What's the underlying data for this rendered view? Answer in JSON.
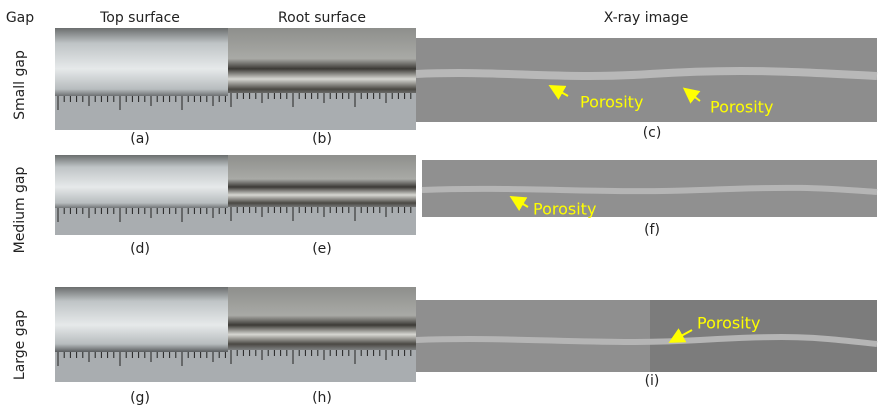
{
  "header": {
    "gap": "Gap",
    "columns": [
      "Top surface",
      "Root surface",
      "X-ray image"
    ]
  },
  "rows": [
    {
      "label": "Small gap",
      "captions": [
        "(a)",
        "(b)",
        "(c)"
      ],
      "annotations": [
        "Porosity",
        "Porosity"
      ]
    },
    {
      "label": "Medium gap",
      "captions": [
        "(d)",
        "(e)",
        "(f)"
      ],
      "annotations": [
        "Porosity"
      ]
    },
    {
      "label": "Large gap",
      "captions": [
        "(g)",
        "(h)",
        "(i)"
      ],
      "annotations": [
        "Porosity"
      ]
    }
  ]
}
